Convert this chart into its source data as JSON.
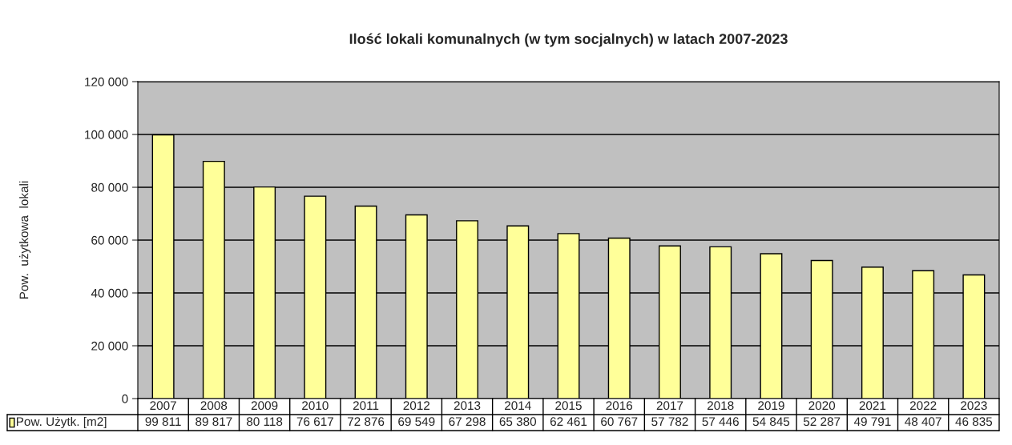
{
  "chart_data": {
    "type": "bar",
    "title": "Ilość lokali komunalnych (w tym socjalnych) w latach 2007-2023",
    "ylabel": "Pow.  użytkowa  lokali",
    "categories": [
      "2007",
      "2008",
      "2009",
      "2010",
      "2011",
      "2012",
      "2013",
      "2014",
      "2015",
      "2016",
      "2017",
      "2018",
      "2019",
      "2020",
      "2021",
      "2022",
      "2023"
    ],
    "series": [
      {
        "name": "Pow. Użytk. [m2]",
        "color": "#ffff99",
        "values": [
          99811,
          89817,
          80118,
          76617,
          72876,
          69549,
          67298,
          65380,
          62461,
          60767,
          57782,
          57446,
          54845,
          52287,
          49791,
          48407,
          46835
        ],
        "value_labels": [
          "99 811",
          "89 817",
          "80 118",
          "76 617",
          "72 876",
          "69 549",
          "67 298",
          "65 380",
          "62 461",
          "60 767",
          "57 782",
          "57 446",
          "54 845",
          "52 287",
          "49 791",
          "48 407",
          "46 835"
        ]
      }
    ],
    "ylim": [
      0,
      120000
    ],
    "yticks": [
      {
        "value": 0,
        "label": "0"
      },
      {
        "value": 20000,
        "label": "20 000"
      },
      {
        "value": 40000,
        "label": "40 000"
      },
      {
        "value": 60000,
        "label": "60 000"
      },
      {
        "value": 80000,
        "label": "80 000"
      },
      {
        "value": 100000,
        "label": "100 000"
      },
      {
        "value": 120000,
        "label": "120 000"
      }
    ],
    "grid": "y",
    "legend": "bottom"
  }
}
